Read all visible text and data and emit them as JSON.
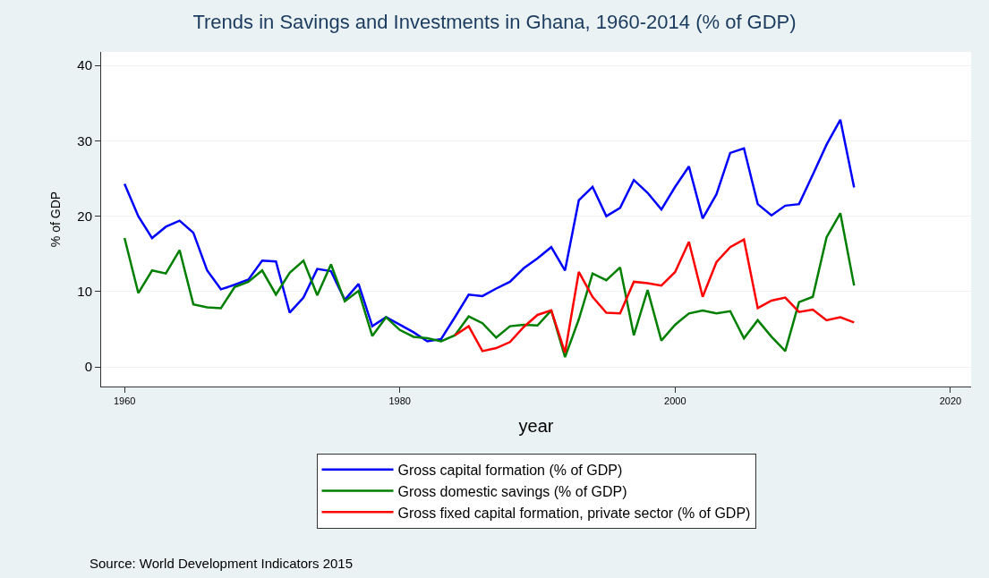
{
  "chart_data": {
    "type": "line",
    "title": "Trends in Savings and Investments in Ghana, 1960-2014 (% of GDP)",
    "xlabel": "year",
    "ylabel": "% of GDP",
    "x": [
      1960,
      1961,
      1962,
      1963,
      1964,
      1965,
      1966,
      1967,
      1968,
      1969,
      1970,
      1971,
      1972,
      1973,
      1974,
      1975,
      1976,
      1977,
      1978,
      1979,
      1980,
      1981,
      1982,
      1983,
      1984,
      1985,
      1986,
      1987,
      1988,
      1989,
      1990,
      1991,
      1992,
      1993,
      1994,
      1995,
      1996,
      1997,
      1998,
      1999,
      2000,
      2001,
      2002,
      2003,
      2004,
      2005,
      2006,
      2007,
      2008,
      2009,
      2010,
      2011,
      2012,
      2013
    ],
    "series": [
      {
        "name": "Gross capital formation (% of GDP)",
        "color": "#0000ff",
        "values": [
          24.3,
          20,
          17.1,
          18.6,
          19.4,
          17.8,
          12.8,
          10.3,
          10.9,
          11.6,
          14.1,
          14.0,
          7.2,
          9.2,
          13.0,
          12.7,
          8.9,
          11.0,
          5.4,
          6.6,
          5.6,
          4.6,
          3.4,
          3.7,
          6.6,
          9.6,
          9.4,
          10.4,
          11.3,
          13.1,
          14.4,
          15.9,
          12.8,
          22.1,
          23.9,
          20.0,
          21.1,
          24.8,
          23.1,
          20.9,
          23.9,
          26.6,
          19.7,
          22.9,
          28.4,
          29.0,
          21.6,
          20.1,
          21.4,
          21.6,
          25.5,
          29.5,
          32.8,
          23.8
        ]
      },
      {
        "name": "Gross domestic savings (% of GDP)",
        "color": "#007f00",
        "values": [
          17.1,
          9.8,
          12.8,
          12.4,
          15.5,
          8.3,
          7.9,
          7.8,
          10.6,
          11.3,
          12.8,
          9.6,
          12.5,
          14.1,
          9.5,
          13.6,
          8.7,
          10.1,
          4.1,
          6.6,
          4.9,
          4.0,
          3.8,
          3.4,
          4.2,
          6.7,
          5.8,
          3.9,
          5.4,
          5.6,
          5.5,
          7.5,
          1.3,
          6.3,
          12.4,
          11.5,
          13.2,
          4.2,
          10.2,
          3.5,
          5.6,
          7.1,
          7.5,
          7.1,
          7.4,
          3.8,
          6.2,
          4.0,
          2.1,
          8.6,
          9.3,
          17.2,
          20.4,
          10.8
        ]
      },
      {
        "name": "Gross fixed capital formation, private sector (% of GDP)",
        "color": "#ff0000",
        "values": [
          null,
          null,
          null,
          null,
          null,
          null,
          null,
          null,
          null,
          null,
          null,
          null,
          null,
          null,
          null,
          null,
          null,
          null,
          null,
          null,
          null,
          null,
          null,
          null,
          4.2,
          5.4,
          2.1,
          2.5,
          3.3,
          5.3,
          6.9,
          7.5,
          1.9,
          12.6,
          9.3,
          7.2,
          7.1,
          11.3,
          11.1,
          10.8,
          12.6,
          16.6,
          9.3,
          13.9,
          15.9,
          16.9,
          7.8,
          8.8,
          9.2,
          7.3,
          7.6,
          6.2,
          6.6,
          5.9
        ]
      }
    ],
    "xlim": [
      1958.3,
      2021.5
    ],
    "xticks": [
      1960,
      1980,
      2000,
      2020
    ],
    "ylim": [
      -2.6,
      41.8
    ],
    "yticks": [
      0,
      10,
      20,
      30,
      40
    ],
    "grid": "y",
    "legend": "bottom",
    "line_style": "solid",
    "marker": "none",
    "annotations": [
      "Source: World Development Indicators 2015"
    ]
  }
}
